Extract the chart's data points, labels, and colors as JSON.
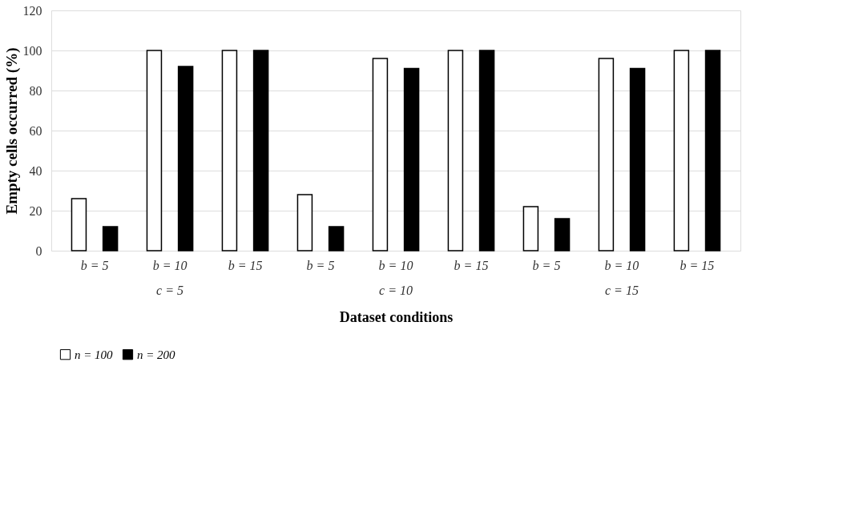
{
  "chart_data": {
    "type": "bar",
    "xlabel": "Dataset conditions",
    "ylabel": "Empty cells occurred (%)",
    "categories": [
      "b = 5",
      "b = 10",
      "b = 15",
      "b = 5",
      "b = 10",
      "b = 15",
      "b = 5",
      "b = 10",
      "b = 15"
    ],
    "series": [
      {
        "name": "n = 100",
        "color": "#ffffff",
        "values": [
          26,
          100,
          100,
          28,
          96,
          100,
          22,
          96,
          100
        ]
      },
      {
        "name": "n = 200",
        "color": "#000000",
        "values": [
          12,
          92,
          100,
          12,
          91,
          100,
          16,
          91,
          100
        ]
      }
    ],
    "annotations": [
      "c = 5",
      "c = 10",
      "c = 15"
    ],
    "ylim": [
      0,
      120
    ],
    "yticks": [
      0,
      20,
      40,
      60,
      80,
      100,
      120
    ],
    "grid": "y",
    "legend": "bottom"
  }
}
